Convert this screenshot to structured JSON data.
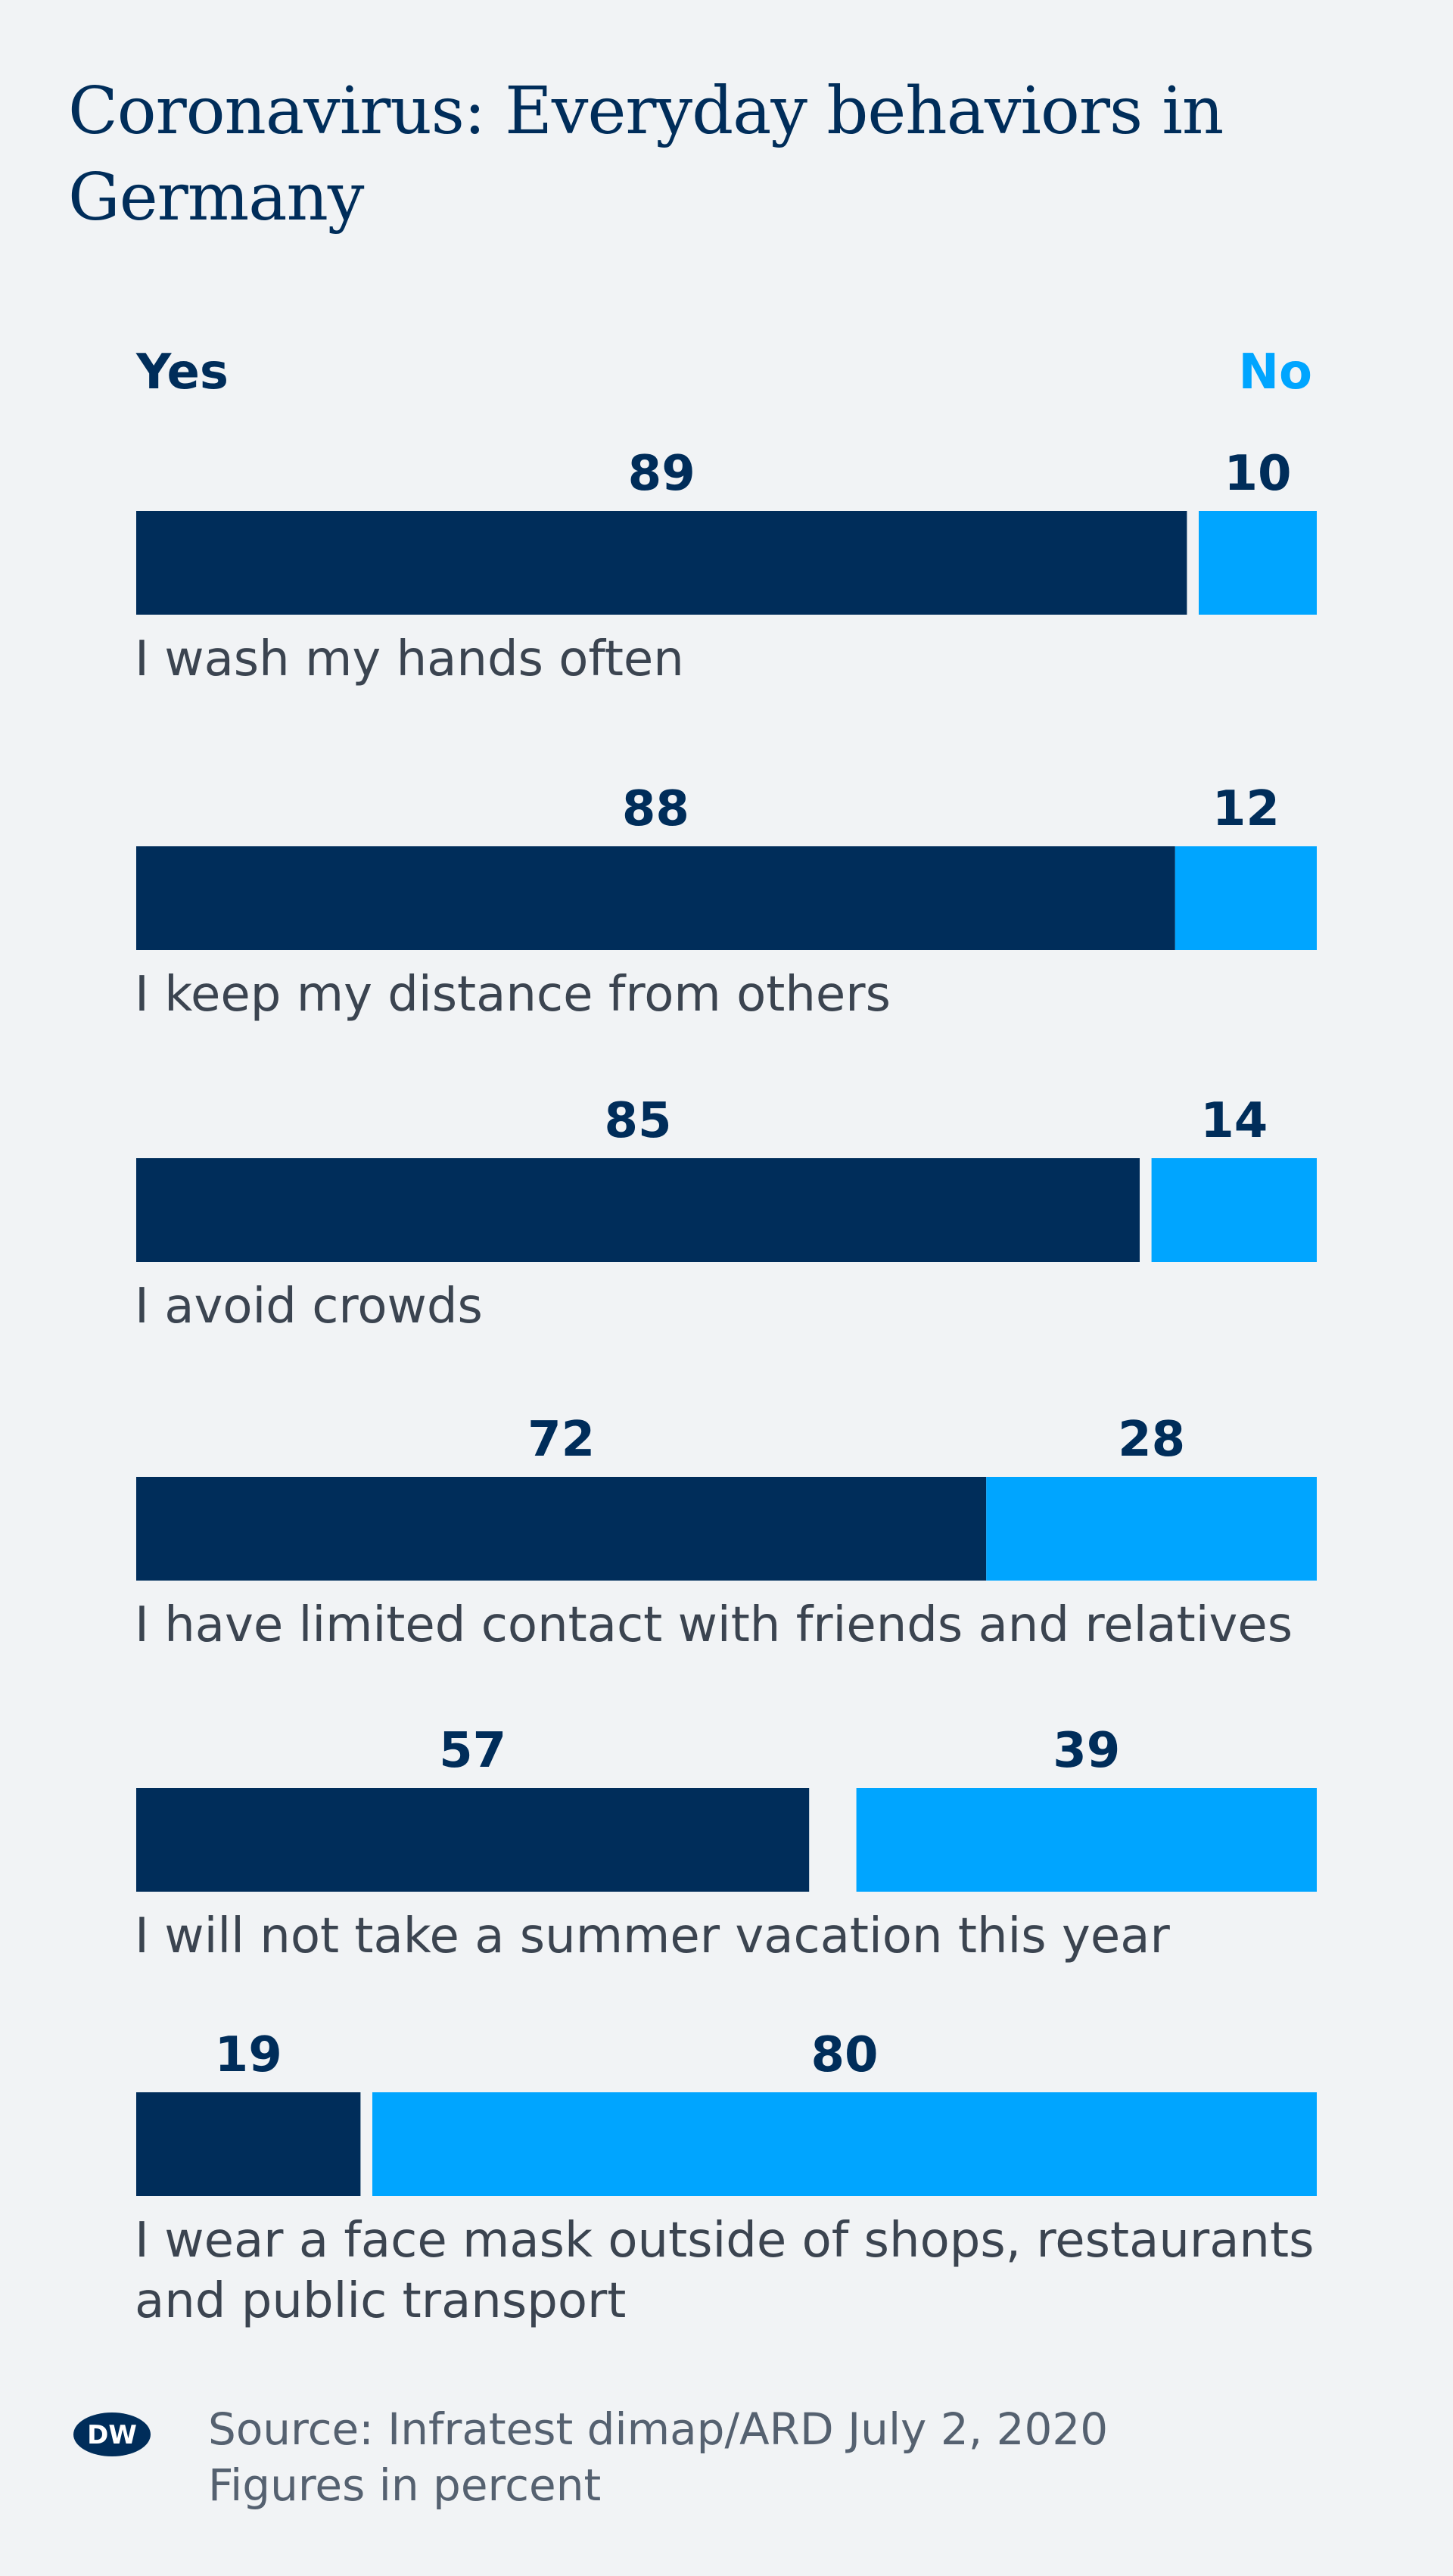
{
  "title": "Coronavirus: Everyday behaviors in Germany",
  "logo": "DW",
  "source": "Source: Infratest dimap/ARD July 2, 2020",
  "unit_note": "Figures in percent",
  "colors": {
    "yes": "#002d5a",
    "no": "#00a5ff",
    "background": "#f1f3f5"
  },
  "chart_data": {
    "type": "bar",
    "orientation": "horizontal",
    "stacked": true,
    "legend": [
      "Yes",
      "No"
    ],
    "legend_placement": "top",
    "xlim": [
      0,
      100
    ],
    "categories": [
      "I wash my hands often",
      "I keep my distance from others",
      "I avoid crowds",
      "I have limited contact with friends and relatives",
      "I will not take a summer vacation this year",
      "I wear a face mask outside of shops, restaurants and public transport"
    ],
    "series": [
      {
        "name": "Yes",
        "values": [
          89,
          88,
          85,
          72,
          57,
          19
        ]
      },
      {
        "name": "No",
        "values": [
          10,
          12,
          14,
          28,
          39,
          80
        ]
      }
    ]
  }
}
